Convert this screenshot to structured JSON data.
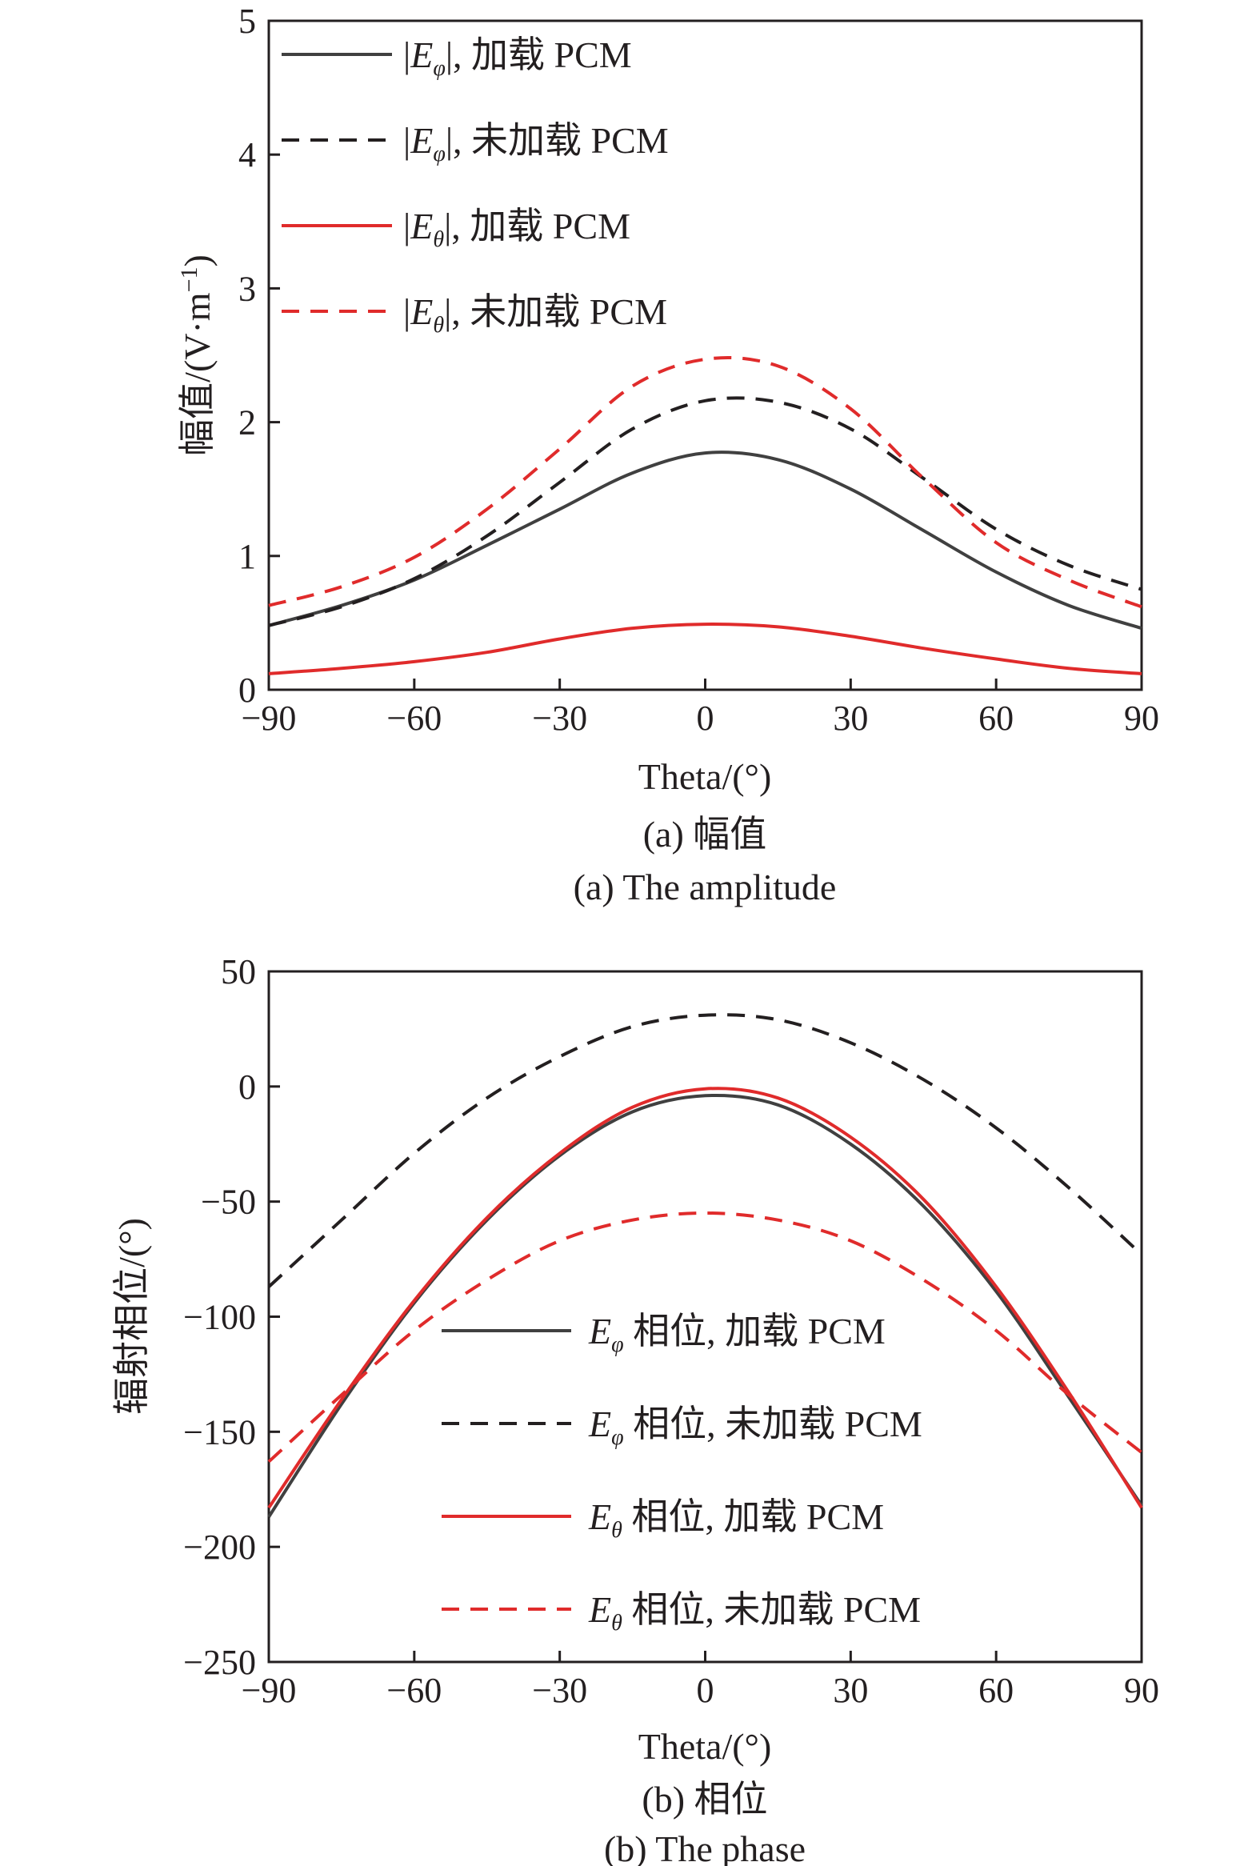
{
  "chart_data": [
    {
      "type": "line",
      "panel": "a",
      "caption_cn": "(a) 幅值",
      "caption_en": "(a) The amplitude",
      "xlabel": "Theta/(°)",
      "ylabel": "幅值/(V·m",
      "ylabel_sup": "−1",
      "ylabel_close": ")",
      "xlim": [
        -90,
        90
      ],
      "ylim": [
        0,
        5
      ],
      "xticks": [
        -90,
        -60,
        -30,
        0,
        30,
        60,
        90
      ],
      "yticks": [
        0,
        1,
        2,
        3,
        4,
        5
      ],
      "xtick_labels": [
        "−90",
        "−60",
        "−30",
        "0",
        "30",
        "60",
        "90"
      ],
      "ytick_labels": [
        "0",
        "1",
        "2",
        "3",
        "4",
        "5"
      ],
      "grid": false,
      "legend_position": "top-left",
      "x": [
        -90,
        -75,
        -60,
        -45,
        -30,
        -15,
        0,
        15,
        30,
        45,
        60,
        75,
        90
      ],
      "series": [
        {
          "name": "|Eφ|, 加载 PCM",
          "legend_prefix": "|",
          "legend_var": "E",
          "legend_sub": "φ",
          "legend_suffix": "|, 加载 PCM",
          "color": "#404040",
          "style": "solid",
          "values": [
            0.48,
            0.63,
            0.82,
            1.08,
            1.35,
            1.62,
            1.77,
            1.72,
            1.5,
            1.19,
            0.88,
            0.63,
            0.46
          ]
        },
        {
          "name": "|Eφ|, 未加载 PCM",
          "legend_prefix": "|",
          "legend_var": "E",
          "legend_sub": "φ",
          "legend_suffix": "|, 未加载 PCM",
          "color": "#231f20",
          "style": "dashed",
          "values": [
            0.48,
            0.62,
            0.83,
            1.15,
            1.55,
            1.95,
            2.16,
            2.15,
            1.95,
            1.58,
            1.2,
            0.93,
            0.75
          ]
        },
        {
          "name": "|Eθ|, 加载 PCM",
          "legend_prefix": "|",
          "legend_var": "E",
          "legend_sub": "θ",
          "legend_suffix": "|, 加载 PCM",
          "color": "#e02b2b",
          "style": "solid",
          "values": [
            0.12,
            0.16,
            0.21,
            0.28,
            0.38,
            0.46,
            0.49,
            0.47,
            0.4,
            0.31,
            0.23,
            0.16,
            0.12
          ]
        },
        {
          "name": "|Eθ|, 未加载 PCM",
          "legend_prefix": "|",
          "legend_var": "E",
          "legend_sub": "θ",
          "legend_suffix": "|, 未加载 PCM",
          "color": "#e02b2b",
          "style": "dashed",
          "values": [
            0.63,
            0.77,
            0.99,
            1.35,
            1.8,
            2.27,
            2.47,
            2.42,
            2.1,
            1.58,
            1.1,
            0.82,
            0.62
          ]
        }
      ]
    },
    {
      "type": "line",
      "panel": "b",
      "caption_cn": "(b) 相位",
      "caption_en": "(b) The phase",
      "xlabel": "Theta/(°)",
      "ylabel": "辐射相位/(°)",
      "xlim": [
        -90,
        90
      ],
      "ylim": [
        -250,
        50
      ],
      "xticks": [
        -90,
        -60,
        -30,
        0,
        30,
        60,
        90
      ],
      "yticks": [
        -250,
        -200,
        -150,
        -100,
        -50,
        0,
        50
      ],
      "xtick_labels": [
        "−90",
        "−60",
        "−30",
        "0",
        "30",
        "60",
        "90"
      ],
      "ytick_labels": [
        "−250",
        "−200",
        "−150",
        "−100",
        "−50",
        "0",
        "50"
      ],
      "grid": false,
      "legend_position": "bottom-center",
      "x": [
        -90,
        -75,
        -60,
        -45,
        -30,
        -15,
        0,
        15,
        30,
        45,
        60,
        75,
        90
      ],
      "series": [
        {
          "name": "Eφ 相位, 加载 PCM",
          "legend_prefix": "",
          "legend_var": "E",
          "legend_sub": "φ",
          "legend_suffix": " 相位, 加载 PCM",
          "color": "#404040",
          "style": "solid",
          "values": [
            -187,
            -138,
            -94,
            -58,
            -30,
            -11,
            -4,
            -8,
            -25,
            -52,
            -89,
            -135,
            -182
          ]
        },
        {
          "name": "Eφ 相位, 未加载 PCM",
          "legend_prefix": "",
          "legend_var": "E",
          "legend_sub": "φ",
          "legend_suffix": " 相位, 未加载 PCM",
          "color": "#231f20",
          "style": "dashed",
          "values": [
            -87,
            -58,
            -29,
            -5,
            13,
            26,
            31,
            29,
            19,
            3,
            -18,
            -44,
            -73
          ]
        },
        {
          "name": "Eθ 相位, 加载 PCM",
          "legend_prefix": "",
          "legend_var": "E",
          "legend_sub": "θ",
          "legend_suffix": " 相位, 加载 PCM",
          "color": "#e02b2b",
          "style": "solid",
          "values": [
            -183,
            -136,
            -93,
            -57,
            -29,
            -9,
            -1,
            -5,
            -22,
            -49,
            -87,
            -133,
            -183
          ]
        },
        {
          "name": "Eθ 相位, 未加载 PCM",
          "legend_prefix": "",
          "legend_var": "E",
          "legend_sub": "θ",
          "legend_suffix": " 相位, 未加载 PCM",
          "color": "#e02b2b",
          "style": "dashed",
          "values": [
            -163,
            -134,
            -106,
            -84,
            -67,
            -58,
            -55,
            -58,
            -67,
            -84,
            -106,
            -134,
            -159
          ]
        }
      ]
    }
  ]
}
